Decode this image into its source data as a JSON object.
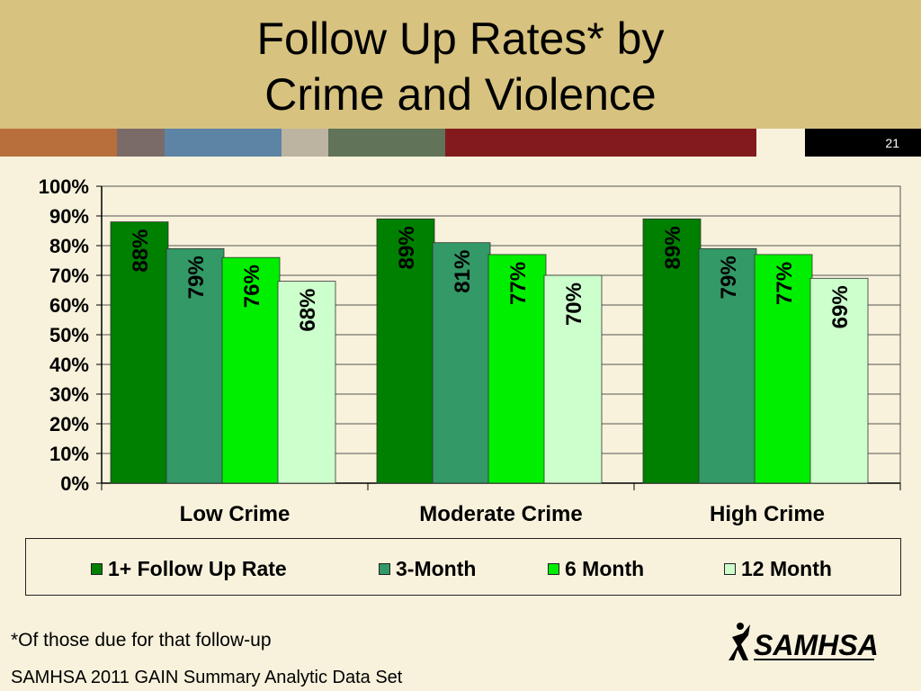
{
  "slide": {
    "title_line1": "Follow Up Rates* by",
    "title_line2": "Crime and Violence",
    "slide_number": "21",
    "footnote": "*Of those due for that follow-up",
    "source": "SAMHSA 2011 GAIN Summary Analytic Data Set",
    "logo_text": "SAMHSA",
    "stripe_colors": [
      "#b86f3c",
      "#7a6b69",
      "#5d84a4",
      "#bdb3a1",
      "#617359",
      "#831a1d",
      "#f8f2dc"
    ]
  },
  "chart_data": {
    "type": "bar",
    "categories": [
      "Low Crime",
      "Moderate Crime",
      "High Crime"
    ],
    "series": [
      {
        "name": "1+ Follow Up Rate",
        "values": [
          88,
          89,
          89
        ],
        "color": "#008000"
      },
      {
        "name": "3-Month",
        "values": [
          79,
          81,
          79
        ],
        "color": "#339966"
      },
      {
        "name": "6 Month",
        "values": [
          76,
          77,
          77
        ],
        "color": "#00ee00"
      },
      {
        "name": "12 Month",
        "values": [
          68,
          70,
          69
        ],
        "color": "#ccffcc"
      }
    ],
    "data_labels": [
      [
        "88%",
        "89%",
        "89%"
      ],
      [
        "79%",
        "81%",
        "79%"
      ],
      [
        "76%",
        "77%",
        "77%"
      ],
      [
        "68%",
        "70%",
        "69%"
      ]
    ],
    "y_ticks": [
      "0%",
      "10%",
      "20%",
      "30%",
      "40%",
      "50%",
      "60%",
      "70%",
      "80%",
      "90%",
      "100%"
    ],
    "ylim": [
      0,
      100
    ],
    "grid": true,
    "legend_position": "bottom"
  }
}
